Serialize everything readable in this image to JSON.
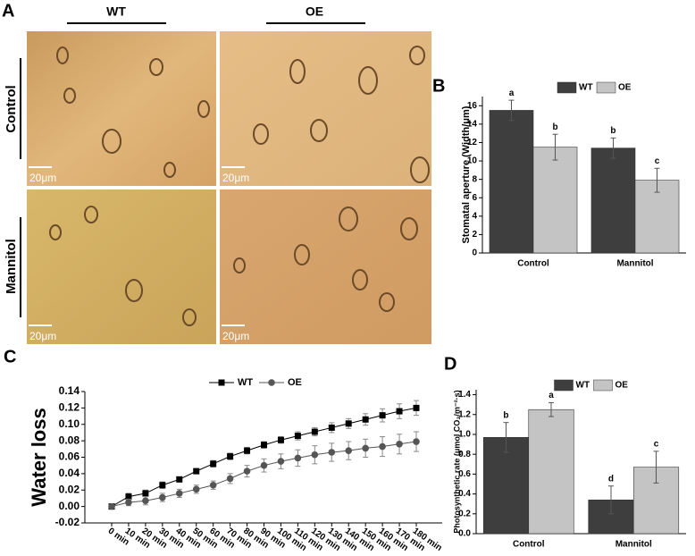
{
  "panel_labels": [
    "A",
    "B",
    "C",
    "D"
  ],
  "micrographs": {
    "columns": [
      "WT",
      "OE"
    ],
    "rows": [
      "Control",
      "Mannitol"
    ],
    "scale_bar": "20μm"
  },
  "chart_data": [
    {
      "type": "bar",
      "ylabel": "Stomatal aperture (Width/μm)",
      "categories": [
        "Control",
        "Mannitol"
      ],
      "series": [
        {
          "name": "WT",
          "color": "#3e3e3e",
          "values": [
            15.5,
            11.4
          ],
          "errors": [
            1.1,
            1.1
          ],
          "letters": [
            "a",
            "b"
          ]
        },
        {
          "name": "OE",
          "color": "#c4c4c4",
          "values": [
            11.5,
            7.9
          ],
          "errors": [
            1.4,
            1.3
          ],
          "letters": [
            "b",
            "c"
          ]
        }
      ],
      "ylim": [
        0,
        17
      ],
      "yticks": [
        0,
        2,
        4,
        6,
        8,
        10,
        12,
        14,
        16
      ],
      "legend": "top"
    },
    {
      "type": "line",
      "ylabel": "Water loss",
      "categories": [
        "0 min",
        "10 min",
        "20 min",
        "30 min",
        "40 min",
        "50 min",
        "60 min",
        "70 min",
        "80 min",
        "90 min",
        "100 min",
        "110 min",
        "120 min",
        "130 min",
        "140 min",
        "150 min",
        "160 min",
        "170 min",
        "180 min"
      ],
      "series": [
        {
          "name": "WT",
          "color": "#000000",
          "marker": "square",
          "values": [
            0,
            0.012,
            0.016,
            0.026,
            0.033,
            0.043,
            0.052,
            0.061,
            0.068,
            0.075,
            0.081,
            0.086,
            0.091,
            0.096,
            0.101,
            0.106,
            0.111,
            0.116,
            0.12
          ],
          "errors": [
            0.002,
            0.004,
            0.004,
            0.004,
            0.003,
            0.003,
            0.004,
            0.004,
            0.004,
            0.004,
            0.004,
            0.005,
            0.005,
            0.006,
            0.006,
            0.007,
            0.008,
            0.009,
            0.009
          ]
        },
        {
          "name": "OE",
          "color": "#555555",
          "marker": "circle",
          "values": [
            0,
            0.005,
            0.007,
            0.011,
            0.016,
            0.021,
            0.026,
            0.034,
            0.043,
            0.05,
            0.055,
            0.059,
            0.063,
            0.066,
            0.068,
            0.071,
            0.073,
            0.076,
            0.079
          ],
          "errors": [
            0.002,
            0.004,
            0.005,
            0.005,
            0.005,
            0.005,
            0.005,
            0.006,
            0.007,
            0.008,
            0.009,
            0.01,
            0.011,
            0.011,
            0.011,
            0.011,
            0.012,
            0.012,
            0.012
          ]
        }
      ],
      "ylim": [
        -0.02,
        0.14
      ],
      "yticks": [
        {
          "value": -0.02,
          "label": "-0.02"
        },
        {
          "value": 0,
          "label": "0.00"
        },
        {
          "value": 0.02,
          "label": "0.02"
        },
        {
          "value": 0.04,
          "label": "0.04"
        },
        {
          "value": 0.06,
          "label": "0.06"
        },
        {
          "value": 0.08,
          "label": "0.08"
        },
        {
          "value": 0.1,
          "label": "0.10"
        },
        {
          "value": 0.12,
          "label": "0.12"
        },
        {
          "value": 0.14,
          "label": "0.14"
        }
      ],
      "legend": "top"
    },
    {
      "type": "bar",
      "ylabel": "Photosynthetic rate (μmol CO₂/m⁻²·s)",
      "categories": [
        "Control",
        "Mannitol"
      ],
      "series": [
        {
          "name": "WT",
          "color": "#3e3e3e",
          "values": [
            0.97,
            0.34
          ],
          "errors": [
            0.15,
            0.14
          ],
          "letters": [
            "b",
            "d"
          ]
        },
        {
          "name": "OE",
          "color": "#c4c4c4",
          "values": [
            1.25,
            0.67
          ],
          "errors": [
            0.07,
            0.16
          ],
          "letters": [
            "a",
            "c"
          ]
        }
      ],
      "ylim": [
        0,
        1.45
      ],
      "yticks": [
        {
          "value": 0,
          "label": "0.0"
        },
        0.2,
        0.4,
        0.6,
        0.8,
        {
          "value": 1,
          "label": "1.0"
        },
        1.2,
        1.4
      ],
      "legend": "top"
    }
  ]
}
